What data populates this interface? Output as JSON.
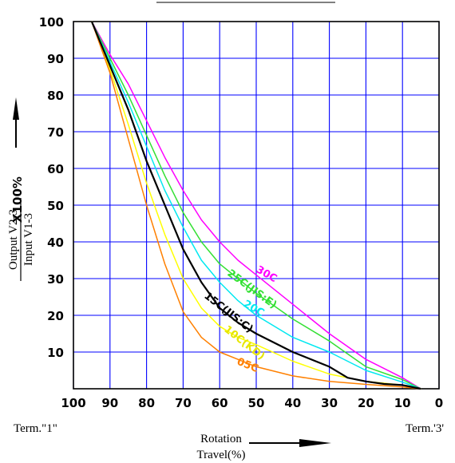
{
  "chart_data": {
    "type": "line",
    "xlim": [
      100,
      0
    ],
    "ylim": [
      0,
      100
    ],
    "xticks": [
      "100",
      "90",
      "80",
      "70",
      "60",
      "50",
      "40",
      "30",
      "20",
      "10",
      "0"
    ],
    "yticks": [
      "10",
      "20",
      "30",
      "40",
      "50",
      "60",
      "70",
      "80",
      "90",
      "100"
    ],
    "ylabel": {
      "numerator": "Output V2-3",
      "denominator": "Input  V1-3",
      "multiplier": "X100%"
    },
    "xlabel": "Rotation\nTravel(%)",
    "xlabel_line1": "Rotation",
    "xlabel_line2": "Travel(%)",
    "left_term": "Term.\"1\"",
    "right_term": "Term.'3'",
    "grid": true,
    "colors": {
      "grid": "#0000ff",
      "05C": "#ff8000",
      "10C": "#ffff00",
      "15C": "#000000",
      "20C": "#00e8f0",
      "25C": "#33e033",
      "30C": "#ff00ff"
    },
    "series": [
      {
        "name": "05C",
        "label": "05C",
        "color": "#ff8000",
        "x": [
          95,
          90,
          85,
          80,
          75,
          70,
          65,
          60,
          55,
          50,
          40,
          30,
          20,
          10,
          5
        ],
        "y": [
          100,
          86,
          68,
          50,
          34,
          21,
          14,
          10,
          8,
          6,
          3.5,
          2,
          1.2,
          0.5,
          0
        ]
      },
      {
        "name": "10C(KD)",
        "label": "10C(KD)",
        "color": "#ffff00",
        "x": [
          95,
          90,
          85,
          80,
          75,
          70,
          65,
          60,
          55,
          50,
          40,
          30,
          20,
          10,
          5
        ],
        "y": [
          100,
          87,
          72,
          56,
          42,
          30,
          22,
          17,
          14,
          12,
          7.5,
          4,
          2,
          1,
          0
        ]
      },
      {
        "name": "15C(JIS:C)",
        "label": "15C(JIS:C)",
        "color": "#000000",
        "x": [
          95,
          90,
          85,
          80,
          75,
          70,
          65,
          60,
          55,
          50,
          40,
          30,
          25,
          20,
          15,
          10,
          5
        ],
        "y": [
          100,
          88,
          76,
          62,
          50,
          38,
          29,
          22,
          18,
          15,
          10,
          6,
          3,
          2,
          1.3,
          1,
          0
        ]
      },
      {
        "name": "20C",
        "label": "20C",
        "color": "#00e8f0",
        "x": [
          95,
          90,
          85,
          80,
          75,
          70,
          65,
          60,
          55,
          50,
          40,
          30,
          20,
          10,
          5
        ],
        "y": [
          100,
          89,
          78,
          66,
          54,
          44,
          35,
          29,
          24,
          20,
          14,
          10,
          5,
          1.8,
          0
        ]
      },
      {
        "name": "25C(JIS:E)",
        "label": "25C(JIS:E)",
        "color": "#33e033",
        "x": [
          95,
          90,
          85,
          80,
          75,
          70,
          65,
          60,
          55,
          50,
          40,
          30,
          20,
          10,
          5
        ],
        "y": [
          100,
          90,
          80,
          69,
          58,
          48,
          40,
          34,
          30,
          26,
          19,
          13,
          6,
          2.5,
          0
        ]
      },
      {
        "name": "30C",
        "label": "30C",
        "color": "#ff00ff",
        "x": [
          95,
          90,
          85,
          80,
          75,
          70,
          65,
          60,
          55,
          50,
          40,
          30,
          20,
          10,
          5
        ],
        "y": [
          100,
          91,
          83,
          73,
          63,
          54,
          46,
          40,
          35,
          31,
          23,
          15,
          8,
          3,
          0
        ]
      }
    ]
  }
}
